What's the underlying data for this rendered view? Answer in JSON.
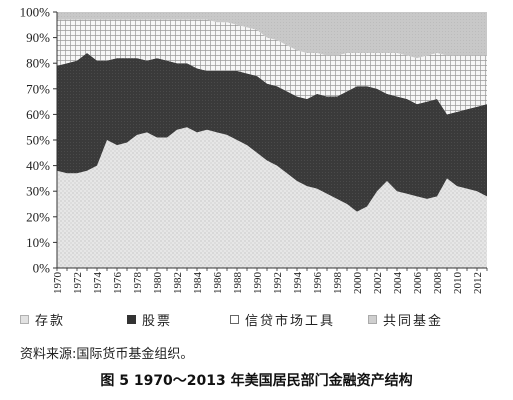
{
  "chart_data": {
    "type": "area",
    "stacked": true,
    "title": "",
    "xlabel": "",
    "ylabel": "",
    "ylim": [
      0,
      100
    ],
    "y_unit": "%",
    "y_ticks": [
      "0%",
      "10%",
      "20%",
      "30%",
      "40%",
      "50%",
      "60%",
      "70%",
      "80%",
      "90%",
      "100%"
    ],
    "x_ticks": [
      "1970",
      "1972",
      "1974",
      "1976",
      "1978",
      "1980",
      "1982",
      "1984",
      "1986",
      "1988",
      "1990",
      "1992",
      "1994",
      "1996",
      "1998",
      "2000",
      "2002",
      "2004",
      "2006",
      "2008",
      "2010",
      "2012"
    ],
    "x": [
      1970,
      1971,
      1972,
      1973,
      1974,
      1975,
      1976,
      1977,
      1978,
      1979,
      1980,
      1981,
      1982,
      1983,
      1984,
      1985,
      1986,
      1987,
      1988,
      1989,
      1990,
      1991,
      1992,
      1993,
      1994,
      1995,
      1996,
      1997,
      1998,
      1999,
      2000,
      2001,
      2002,
      2003,
      2004,
      2005,
      2006,
      2007,
      2008,
      2009,
      2010,
      2011,
      2012,
      2013
    ],
    "xlim": [
      1970,
      2013
    ],
    "grid": false,
    "legend_position": "bottom",
    "series": [
      {
        "name": "存款",
        "color": "#e4e4e4",
        "pattern": "light dots",
        "values": [
          38,
          37,
          37,
          38,
          40,
          50,
          48,
          49,
          52,
          53,
          51,
          51,
          54,
          55,
          53,
          54,
          53,
          52,
          50,
          48,
          45,
          42,
          40,
          37,
          34,
          32,
          31,
          29,
          27,
          25,
          22,
          24,
          30,
          34,
          30,
          29,
          28,
          27,
          28,
          35,
          32,
          31,
          30,
          28
        ]
      },
      {
        "name": "股票",
        "color": "#3b3b3b",
        "pattern": "solid dark",
        "values": [
          41,
          43,
          44,
          46,
          41,
          31,
          34,
          33,
          30,
          28,
          31,
          30,
          26,
          25,
          25,
          23,
          24,
          25,
          27,
          28,
          30,
          30,
          31,
          32,
          33,
          34,
          37,
          38,
          40,
          44,
          49,
          47,
          40,
          34,
          37,
          37,
          36,
          38,
          38,
          25,
          29,
          31,
          33,
          36
        ]
      },
      {
        "name": "信贷市场工具",
        "color": "#f4f4f4",
        "pattern": "crosshatch",
        "values": [
          18,
          17,
          16,
          13,
          16,
          16,
          15,
          15,
          15,
          16,
          15,
          16,
          17,
          17,
          19,
          20,
          19,
          19,
          18,
          18,
          18,
          18,
          18,
          18,
          18,
          18,
          16,
          16,
          16,
          15,
          13,
          13,
          14,
          16,
          17,
          17,
          18,
          18,
          18,
          23,
          22,
          21,
          20,
          19
        ]
      },
      {
        "name": "共同基金",
        "color": "#c6c6c6",
        "pattern": "light gray",
        "values": [
          3,
          3,
          3,
          3,
          3,
          3,
          3,
          3,
          3,
          3,
          3,
          3,
          3,
          3,
          3,
          3,
          4,
          4,
          5,
          6,
          7,
          10,
          11,
          13,
          15,
          16,
          16,
          17,
          17,
          16,
          16,
          16,
          16,
          16,
          16,
          17,
          18,
          17,
          16,
          17,
          17,
          17,
          17,
          17
        ]
      }
    ]
  },
  "source_note": "资料来源:国际货币基金组织。",
  "caption": "图 5   1970～2013 年美国居民部门金融资产结构"
}
